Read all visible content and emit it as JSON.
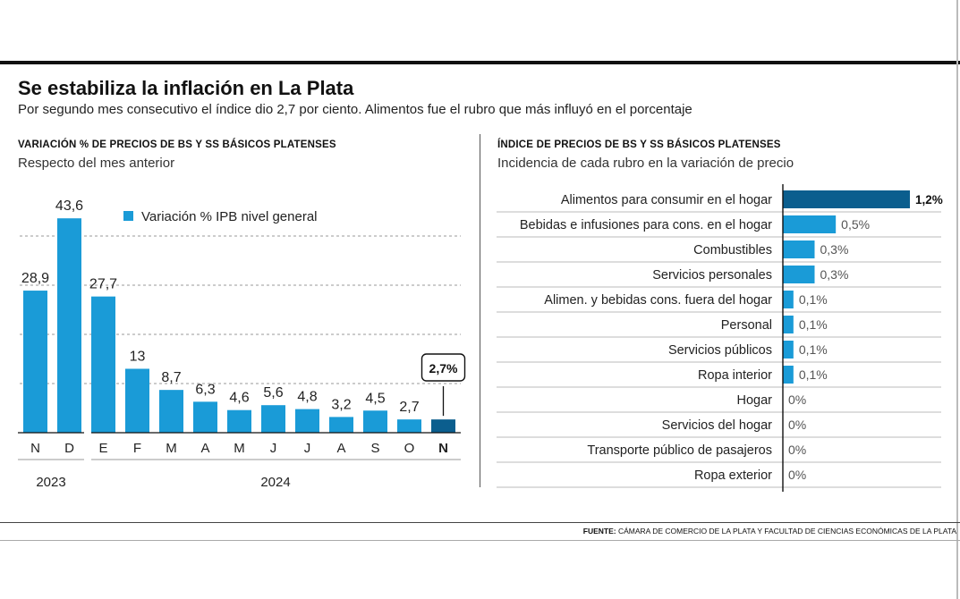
{
  "title": "Se estabiliza la inflación en La Plata",
  "subtitle": "Por segundo mes consecutivo el índice dio 2,7 por ciento. Alimentos fue el rubro que más influyó en el porcentaje",
  "left_section": {
    "heading": "VARIACIÓN % DE PRECIOS DE BS Y SS BÁSICOS PLATENSES",
    "subheading": "Respecto del mes anterior"
  },
  "right_section": {
    "heading": "ÍNDICE DE PRECIOS DE BS Y SS BÁSICOS PLATENSES",
    "subheading": "Incidencia de cada rubro en la variación de precio"
  },
  "source": {
    "label": "FUENTE:",
    "text": "CÁMARA DE COMERCIO DE LA PLATA Y FACULTAD DE CIENCIAS ECONÓMICAS DE LA PLATA"
  },
  "colors": {
    "bar": "#1a9bd7",
    "highlight": "#0b5e8e",
    "grid": "#999999",
    "text": "#222222"
  },
  "chart_data": [
    {
      "type": "bar",
      "title": "VARIACIÓN % DE PRECIOS DE BS Y SS BÁSICOS PLATENSES",
      "subtitle": "Respecto del mes anterior",
      "categories": [
        "N",
        "D",
        "E",
        "F",
        "M",
        "A",
        "M",
        "J",
        "J",
        "A",
        "S",
        "O",
        "N"
      ],
      "value_labels": [
        "28,9",
        "43,6",
        "27,7",
        "13",
        "8,7",
        "6,3",
        "4,6",
        "5,6",
        "4,8",
        "3,2",
        "4,5",
        "2,7",
        ""
      ],
      "series": [
        {
          "name": "Variación % IPB nivel general",
          "values": [
            28.9,
            43.6,
            27.7,
            13,
            8.7,
            6.3,
            4.6,
            5.6,
            4.8,
            3.2,
            4.5,
            2.7,
            2.7
          ]
        }
      ],
      "highlight": {
        "index": 12,
        "label": "2,7%"
      },
      "year_groups": [
        {
          "label": "2023",
          "from": 0,
          "to": 1
        },
        {
          "label": "2024",
          "from": 2,
          "to": 12
        }
      ],
      "ylim": [
        0,
        50
      ],
      "gridlines": [
        10,
        20,
        30,
        40
      ],
      "legend_position": "top"
    },
    {
      "type": "bar",
      "orientation": "horizontal",
      "title": "ÍNDICE DE PRECIOS DE BS Y SS BÁSICOS PLATENSES",
      "subtitle": "Incidencia de cada rubro en la variación de precio",
      "categories": [
        "Alimentos para consumir en el hogar",
        "Bebidas e infusiones para cons. en el hogar",
        "Combustibles",
        "Servicios personales",
        "Alimen. y bebidas cons. fuera del hogar",
        "Personal",
        "Servicios públicos",
        "Ropa interior",
        "Hogar",
        "Servicios del hogar",
        "Transporte público de pasajeros",
        "Ropa exterior"
      ],
      "values": [
        1.2,
        0.5,
        0.3,
        0.3,
        0.1,
        0.1,
        0.1,
        0.1,
        0,
        0,
        0,
        0
      ],
      "value_labels": [
        "1,2%",
        "0,5%",
        "0,3%",
        "0,3%",
        "0,1%",
        "0,1%",
        "0,1%",
        "0,1%",
        "0%",
        "0%",
        "0%",
        "0%"
      ],
      "highlight_index": 0,
      "xlim": [
        0,
        1.2
      ]
    }
  ]
}
